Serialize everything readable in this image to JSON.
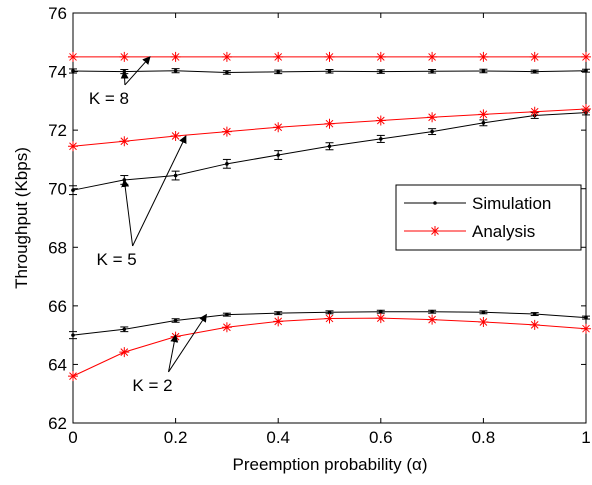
{
  "chart_data": {
    "type": "line",
    "xlabel": "Preemption probability (α)",
    "ylabel": "Throughput (Kbps)",
    "xlim": [
      0,
      1
    ],
    "ylim": [
      62,
      76
    ],
    "xticks": [
      0,
      0.2,
      0.4,
      0.6,
      0.8,
      1
    ],
    "xtick_labels": [
      "0",
      "0.2",
      "0.4",
      "0.6",
      "0.8",
      "1"
    ],
    "yticks": [
      62,
      64,
      66,
      68,
      70,
      72,
      74,
      76
    ],
    "ytick_labels": [
      "62",
      "64",
      "66",
      "68",
      "70",
      "72",
      "74",
      "76"
    ],
    "grid": false,
    "legend_position": "right-middle",
    "legend": [
      {
        "name": "Simulation",
        "color": "#000000",
        "marker": "dot"
      },
      {
        "name": "Analysis",
        "color": "#ff0000",
        "marker": "star"
      }
    ],
    "x": [
      0,
      0.1,
      0.2,
      0.3,
      0.4,
      0.5,
      0.6,
      0.7,
      0.8,
      0.9,
      1.0
    ],
    "series": [
      {
        "group": "K = 8",
        "kind": "simulation",
        "color": "#000000",
        "values": [
          74.02,
          74.0,
          74.03,
          73.97,
          73.99,
          74.01,
          74.0,
          74.01,
          74.02,
          74.0,
          74.03
        ],
        "errors": [
          0.07,
          0.07,
          0.07,
          0.06,
          0.06,
          0.06,
          0.06,
          0.06,
          0.06,
          0.05,
          0.05
        ]
      },
      {
        "group": "K = 8",
        "kind": "analysis",
        "color": "#ff0000",
        "values": [
          74.5,
          74.5,
          74.5,
          74.5,
          74.5,
          74.5,
          74.5,
          74.5,
          74.5,
          74.5,
          74.5
        ]
      },
      {
        "group": "K = 5",
        "kind": "simulation",
        "color": "#000000",
        "values": [
          69.95,
          70.3,
          70.45,
          70.85,
          71.15,
          71.45,
          71.7,
          71.95,
          72.25,
          72.5,
          72.6
        ],
        "errors": [
          0.15,
          0.15,
          0.15,
          0.15,
          0.15,
          0.12,
          0.12,
          0.1,
          0.1,
          0.1,
          0.08
        ]
      },
      {
        "group": "K = 5",
        "kind": "analysis",
        "color": "#ff0000",
        "values": [
          71.45,
          71.62,
          71.8,
          71.95,
          72.1,
          72.22,
          72.33,
          72.44,
          72.54,
          72.63,
          72.72
        ]
      },
      {
        "group": "K = 2",
        "kind": "simulation",
        "color": "#000000",
        "values": [
          65.0,
          65.2,
          65.5,
          65.7,
          65.75,
          65.78,
          65.8,
          65.8,
          65.78,
          65.72,
          65.6
        ],
        "errors": [
          0.12,
          0.08,
          0.06,
          0.05,
          0.05,
          0.05,
          0.05,
          0.05,
          0.05,
          0.05,
          0.05
        ]
      },
      {
        "group": "K = 2",
        "kind": "analysis",
        "color": "#ff0000",
        "values": [
          63.6,
          64.42,
          64.95,
          65.27,
          65.47,
          65.57,
          65.58,
          65.53,
          65.45,
          65.35,
          65.22
        ]
      }
    ],
    "annotations": [
      {
        "text": "K = 8",
        "label_x": 0.07,
        "label_y": 73.1,
        "arrows": [
          [
            0.1,
            74.0
          ],
          [
            0.15,
            74.5
          ]
        ]
      },
      {
        "text": "K = 5",
        "label_x": 0.085,
        "label_y": 67.6,
        "arrows": [
          [
            0.1,
            70.3
          ],
          [
            0.22,
            71.8
          ]
        ]
      },
      {
        "text": "K = 2",
        "label_x": 0.155,
        "label_y": 63.3,
        "arrows": [
          [
            0.2,
            65.0
          ],
          [
            0.26,
            65.7
          ]
        ]
      }
    ]
  }
}
